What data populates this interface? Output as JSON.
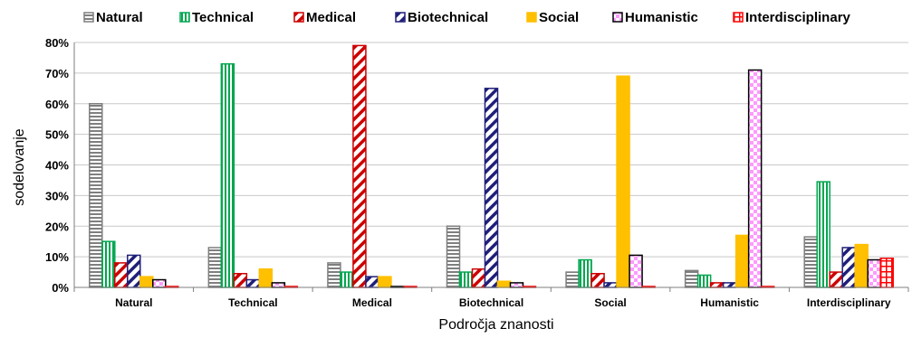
{
  "chart_data": {
    "type": "bar",
    "xlabel": "Področja znanosti",
    "ylabel": "sodelovanje",
    "ylim": [
      0,
      80
    ],
    "yticks": [
      "0%",
      "10%",
      "20%",
      "30%",
      "40%",
      "50%",
      "60%",
      "70%",
      "80%"
    ],
    "grid": true,
    "legend_position": "top",
    "categories": [
      "Natural",
      "Technical",
      "Medical",
      "Biotechnical",
      "Social",
      "Humanistic",
      "Interdisciplinary"
    ],
    "series": [
      {
        "name": "Natural",
        "color": "#7f7f7f",
        "pattern": "horizontal",
        "values": [
          60,
          13,
          8,
          20,
          5,
          5.5,
          16.5
        ]
      },
      {
        "name": "Technical",
        "color": "#00a650",
        "pattern": "vertical",
        "values": [
          15,
          73,
          5,
          5,
          9,
          4,
          34.5
        ]
      },
      {
        "name": "Medical",
        "color": "#cc0000",
        "pattern": "diagonal",
        "values": [
          8,
          4.5,
          79,
          6,
          4.5,
          1.5,
          5
        ]
      },
      {
        "name": "Biotechnical",
        "color": "#1f1f7a",
        "pattern": "diagonal",
        "values": [
          10.5,
          2.5,
          3.5,
          65,
          1.5,
          1.5,
          13
        ]
      },
      {
        "name": "Social",
        "color": "#ffc000",
        "pattern": "solid",
        "values": [
          3.5,
          6,
          3.5,
          2,
          69,
          17,
          14
        ]
      },
      {
        "name": "Humanistic",
        "color": "#000000",
        "pattern": "plaid",
        "values": [
          2.5,
          1.5,
          0.3,
          1.5,
          10.5,
          71,
          9
        ]
      },
      {
        "name": "Interdisciplinary",
        "color": "#ff0000",
        "pattern": "grid",
        "values": [
          0.3,
          0.3,
          0.3,
          0.3,
          0.3,
          0.3,
          9.5
        ]
      }
    ]
  }
}
